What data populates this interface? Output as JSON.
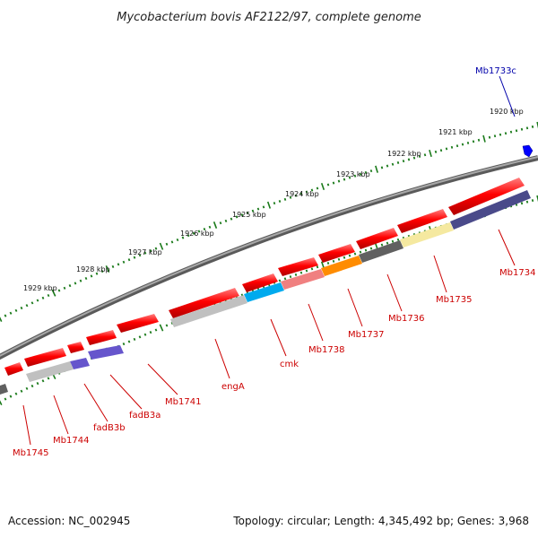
{
  "title": "Mycobacterium bovis AF2122/97, complete genome",
  "footer": {
    "accession": "Accession: NC_002945",
    "summary": "Topology: circular; Length: 4,345,492 bp; Genes: 3,968"
  },
  "scale": {
    "ticks": [
      {
        "label": "1920 kbp"
      },
      {
        "label": "1921 kbp"
      },
      {
        "label": "1922 kbp"
      },
      {
        "label": "1923 kbp"
      },
      {
        "label": "1924 kbp"
      },
      {
        "label": "1925 kbp"
      },
      {
        "label": "1926 kbp"
      },
      {
        "label": "1927 kbp"
      },
      {
        "label": "1928 kbp"
      },
      {
        "label": "1929 kbp"
      }
    ]
  },
  "genes": [
    {
      "label": "Mb1733c",
      "color": "#0000aa"
    },
    {
      "label": "Mb1734",
      "color": "#cc0000"
    },
    {
      "label": "Mb1735",
      "color": "#cc0000"
    },
    {
      "label": "Mb1736",
      "color": "#cc0000"
    },
    {
      "label": "Mb1737",
      "color": "#cc0000"
    },
    {
      "label": "Mb1738",
      "color": "#cc0000"
    },
    {
      "label": "cmk",
      "color": "#cc0000"
    },
    {
      "label": "engA",
      "color": "#cc0000"
    },
    {
      "label": "Mb1741",
      "color": "#cc0000"
    },
    {
      "label": "fadB3a",
      "color": "#cc0000"
    },
    {
      "label": "fadB3b",
      "color": "#cc0000"
    },
    {
      "label": "Mb1744",
      "color": "#cc0000"
    },
    {
      "label": "Mb1745",
      "color": "#cc0000"
    }
  ],
  "colors": {
    "cds": "#ff0000",
    "backbone": "#808080",
    "tick": "#1a7a1a"
  }
}
